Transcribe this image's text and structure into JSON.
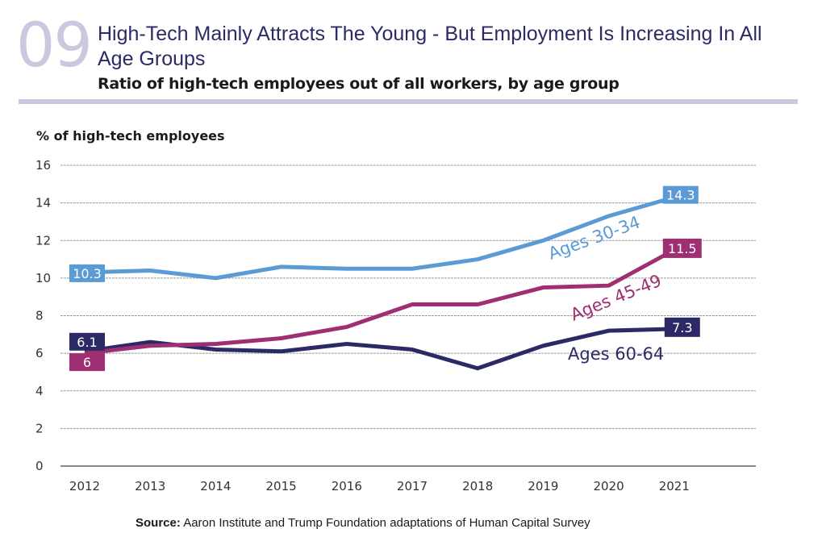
{
  "header": {
    "number": "09",
    "title": "High-Tech Mainly Attracts The Young - But Employment Is Increasing In All Age Groups",
    "subtitle": "Ratio of high-tech employees out of all workers, by age group"
  },
  "source": {
    "label": "Source:",
    "text": " Aaron Institute and Trump Foundation adaptations of Human Capital Survey"
  },
  "chart_data": {
    "type": "line",
    "title": "High-Tech Mainly Attracts The Young - But Employment Is Increasing In All Age Groups",
    "subtitle": "Ratio of high-tech employees out of all workers, by age group",
    "xlabel": "",
    "ylabel": "% of high-tech employees",
    "ylim": [
      0,
      16
    ],
    "yticks": [
      0,
      2,
      4,
      6,
      8,
      10,
      12,
      14,
      16
    ],
    "grid": true,
    "categories": [
      "2012",
      "2013",
      "2014",
      "2015",
      "2016",
      "2017",
      "2018",
      "2019",
      "2020",
      "2021"
    ],
    "series": [
      {
        "name": "Ages 30-34",
        "color": "#5b9bd5",
        "values": [
          10.3,
          10.4,
          10.0,
          10.6,
          10.5,
          10.5,
          11.0,
          12.0,
          13.3,
          14.3
        ],
        "start_label": "10.3",
        "end_label": "14.3"
      },
      {
        "name": "Ages 45-49",
        "color": "#9e2f73",
        "values": [
          6.0,
          6.4,
          6.5,
          6.8,
          7.4,
          8.6,
          8.6,
          9.5,
          9.6,
          11.5
        ],
        "start_label": "6",
        "end_label": "11.5"
      },
      {
        "name": "Ages 60-64",
        "color": "#2b2a66",
        "values": [
          6.1,
          6.6,
          6.2,
          6.1,
          6.5,
          6.2,
          5.2,
          6.4,
          7.2,
          7.3
        ],
        "start_label": "6.1",
        "end_label": "7.3"
      }
    ],
    "legend": "inline labels"
  }
}
